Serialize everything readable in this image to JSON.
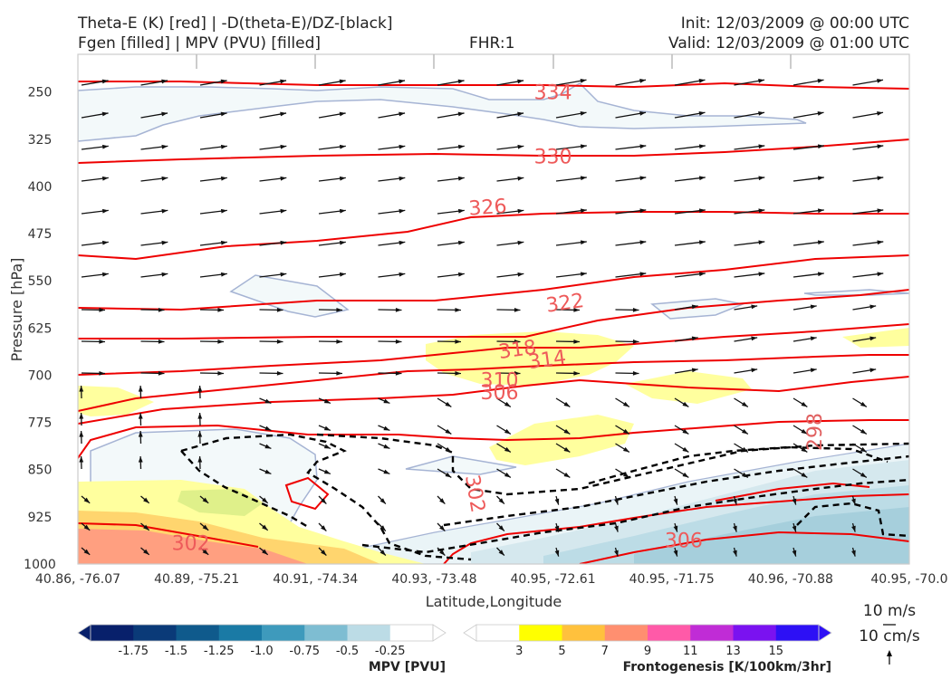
{
  "header": {
    "title_left_1": "Theta-E (K) [red] | -D(theta-E)/DZ-[black]",
    "title_left_2": "Fgen [filled] | MPV (PVU) [filled]",
    "fhr": "FHR:1",
    "init": "Init: 12/03/2009 @ 00:00 UTC",
    "valid": "Valid: 12/03/2009 @ 01:00 UTC"
  },
  "chart_data": {
    "type": "cross-section",
    "xlabel": "Latitude,Longitude",
    "ylabel": "Pressure [hPa]",
    "x_ticks": [
      "40.86, -76.07",
      "40.89, -75.21",
      "40.91, -74.34",
      "40.93, -73.48",
      "40.95, -72.61",
      "40.95, -71.75",
      "40.96, -70.88",
      "40.95, -70.0"
    ],
    "y_ticks": [
      250,
      325,
      400,
      475,
      550,
      625,
      700,
      775,
      850,
      925,
      1000
    ],
    "ylim": [
      1000,
      190
    ],
    "y_inverted": true,
    "theta_e_labels": [
      {
        "value": "334",
        "x_idx": 4.0,
        "p": 250
      },
      {
        "value": "330",
        "x_idx": 4.0,
        "p": 352
      },
      {
        "value": "326",
        "x_idx": 3.45,
        "p": 432
      },
      {
        "value": "322",
        "x_idx": 4.1,
        "p": 584
      },
      {
        "value": "318",
        "x_idx": 3.7,
        "p": 658
      },
      {
        "value": "314",
        "x_idx": 3.95,
        "p": 674
      },
      {
        "value": "310",
        "x_idx": 3.55,
        "p": 707
      },
      {
        "value": "306",
        "x_idx": 3.55,
        "p": 727
      },
      {
        "value": "302",
        "x_idx": 0.95,
        "p": 966
      },
      {
        "value": "302",
        "x_idx": 3.35,
        "p": 888
      },
      {
        "value": "306",
        "x_idx": 5.1,
        "p": 962
      },
      {
        "value": "298",
        "x_idx": 6.2,
        "p": 790
      }
    ],
    "mpv_colorbar": {
      "title": "MPV [PVU]",
      "ticks": [
        "-1.75",
        "-1.5",
        "-1.25",
        "-1.0",
        "-0.75",
        "-0.5",
        "-0.25"
      ],
      "colors": [
        "#08206b",
        "#0a3a78",
        "#0f5a8c",
        "#1a7aa5",
        "#3e9abc",
        "#7ebdd2",
        "#bcdce6",
        "#ffffff"
      ]
    },
    "fgen_colorbar": {
      "title": "Frontogenesis [K/100km/3hr]",
      "ticks": [
        "3",
        "5",
        "7",
        "9",
        "11",
        "13",
        "15"
      ],
      "colors": [
        "#ffffff",
        "#ffff00",
        "#ffc13d",
        "#ff8f70",
        "#ff5aa8",
        "#c02cd6",
        "#7a12f0",
        "#2d10f5"
      ]
    },
    "vector_key": {
      "horizontal": "10 m/s",
      "vertical": "10 cm/s"
    }
  }
}
